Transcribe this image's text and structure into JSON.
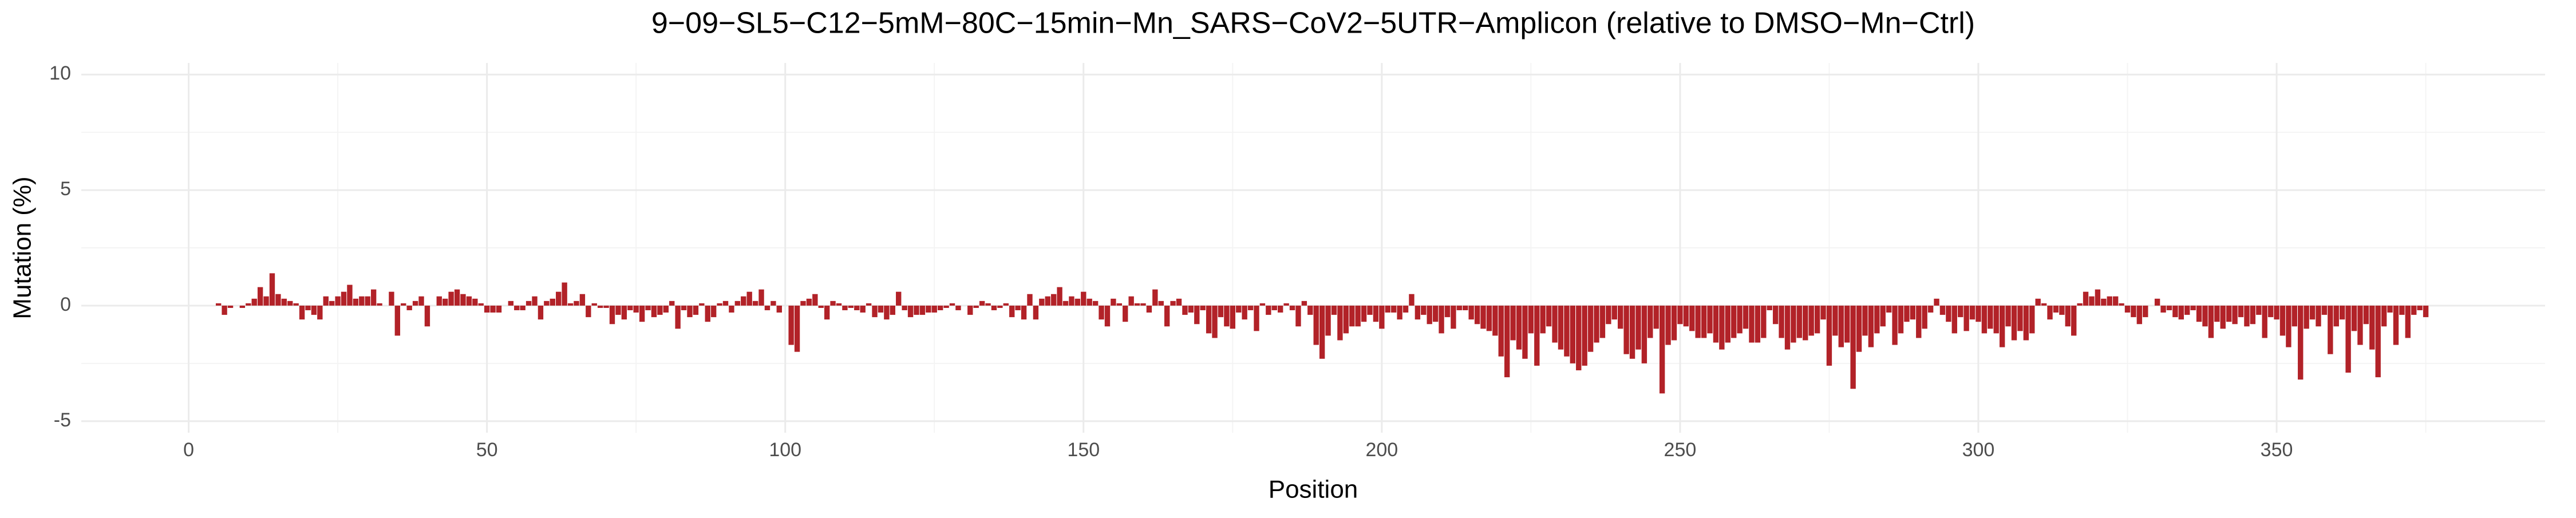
{
  "chart_data": {
    "type": "bar",
    "title": "9−09−SL5−C12−5mM−80C−15min−Mn_SARS−CoV2−5UTR−Amplicon (relative to DMSO−Mn−Ctrl)",
    "x_label": "Position",
    "y_label": "Mutation (%)",
    "color": "#b22228",
    "grid": true,
    "xlim": [
      -18,
      395
    ],
    "xticks": [
      0,
      50,
      100,
      150,
      200,
      250,
      300,
      350
    ],
    "ylim": [
      -5.5,
      10.5
    ],
    "yticks": [
      -5,
      0,
      5,
      10
    ],
    "x": [
      5,
      6,
      7,
      8,
      9,
      10,
      11,
      12,
      13,
      14,
      15,
      16,
      17,
      18,
      19,
      20,
      21,
      22,
      23,
      24,
      25,
      26,
      27,
      28,
      29,
      30,
      31,
      32,
      33,
      34,
      35,
      36,
      37,
      38,
      39,
      40,
      41,
      42,
      43,
      44,
      45,
      46,
      47,
      48,
      49,
      50,
      51,
      52,
      53,
      54,
      55,
      56,
      57,
      58,
      59,
      60,
      61,
      62,
      63,
      64,
      65,
      66,
      67,
      68,
      69,
      70,
      71,
      72,
      73,
      74,
      75,
      76,
      77,
      78,
      79,
      80,
      81,
      82,
      83,
      84,
      85,
      86,
      87,
      88,
      89,
      90,
      91,
      92,
      93,
      94,
      95,
      96,
      97,
      98,
      99,
      100,
      101,
      102,
      103,
      104,
      105,
      106,
      107,
      108,
      109,
      110,
      111,
      112,
      113,
      114,
      115,
      116,
      117,
      118,
      119,
      120,
      121,
      122,
      123,
      124,
      125,
      126,
      127,
      128,
      129,
      130,
      131,
      132,
      133,
      134,
      135,
      136,
      137,
      138,
      139,
      140,
      141,
      142,
      143,
      144,
      145,
      146,
      147,
      148,
      149,
      150,
      151,
      152,
      153,
      154,
      155,
      156,
      157,
      158,
      159,
      160,
      161,
      162,
      163,
      164,
      165,
      166,
      167,
      168,
      169,
      170,
      171,
      172,
      173,
      174,
      175,
      176,
      177,
      178,
      179,
      180,
      181,
      182,
      183,
      184,
      185,
      186,
      187,
      188,
      189,
      190,
      191,
      192,
      193,
      194,
      195,
      196,
      197,
      198,
      199,
      200,
      201,
      202,
      203,
      204,
      205,
      206,
      207,
      208,
      209,
      210,
      211,
      212,
      213,
      214,
      215,
      216,
      217,
      218,
      219,
      220,
      221,
      222,
      223,
      224,
      225,
      226,
      227,
      228,
      229,
      230,
      231,
      232,
      233,
      234,
      235,
      236,
      237,
      238,
      239,
      240,
      241,
      242,
      243,
      244,
      245,
      246,
      247,
      248,
      249,
      250,
      251,
      252,
      253,
      254,
      255,
      256,
      257,
      258,
      259,
      260,
      261,
      262,
      263,
      264,
      265,
      266,
      267,
      268,
      269,
      270,
      271,
      272,
      273,
      274,
      275,
      276,
      277,
      278,
      279,
      280,
      281,
      282,
      283,
      284,
      285,
      286,
      287,
      288,
      289,
      290,
      291,
      292,
      293,
      294,
      295,
      296,
      297,
      298,
      299,
      300,
      301,
      302,
      303,
      304,
      305,
      306,
      307,
      308,
      309,
      310,
      311,
      312,
      313,
      314,
      315,
      316,
      317,
      318,
      319,
      320,
      321,
      322,
      323,
      324,
      325,
      326,
      327,
      328,
      329,
      330,
      331,
      332,
      333,
      334,
      335,
      336,
      337,
      338,
      339,
      340,
      341,
      342,
      343,
      344,
      345,
      346,
      347,
      348,
      349,
      350,
      351,
      352,
      353,
      354,
      355,
      356,
      357,
      358,
      359,
      360,
      361,
      362,
      363,
      364,
      365,
      366,
      367,
      368,
      369,
      370,
      371,
      372,
      373,
      374,
      375
    ],
    "values": [
      0.1,
      -0.4,
      -0.1,
      0,
      -0.1,
      0.1,
      0.3,
      0.8,
      0.4,
      1.4,
      0.5,
      0.3,
      0.2,
      0.1,
      -0.6,
      -0.2,
      -0.4,
      -0.6,
      0.4,
      0.2,
      0.4,
      0.6,
      0.9,
      0.3,
      0.4,
      0.4,
      0.7,
      0.1,
      0,
      0.6,
      -1.3,
      0.1,
      -0.2,
      0.2,
      0.4,
      -0.9,
      0,
      0.4,
      0.3,
      0.6,
      0.7,
      0.5,
      0.4,
      0.3,
      0.1,
      -0.3,
      -0.3,
      -0.3,
      0,
      0.2,
      -0.2,
      -0.2,
      0.2,
      0.4,
      -0.6,
      0.2,
      0.3,
      0.6,
      1.0,
      0.1,
      0.2,
      0.5,
      -0.5,
      0.1,
      -0.1,
      -0.1,
      -0.8,
      -0.4,
      -0.6,
      -0.2,
      -0.3,
      -0.7,
      -0.2,
      -0.5,
      -0.4,
      -0.3,
      0.2,
      -1.0,
      -0.2,
      -0.5,
      -0.4,
      0.1,
      -0.7,
      -0.5,
      0.1,
      0.2,
      -0.3,
      0.2,
      0.4,
      0.6,
      0.2,
      0.7,
      -0.2,
      0.2,
      -0.3,
      0,
      -1.7,
      -2.0,
      0.2,
      0.3,
      0.5,
      -0.1,
      -0.6,
      0.2,
      0.1,
      -0.2,
      -0.1,
      -0.2,
      -0.3,
      0.1,
      -0.5,
      -0.3,
      -0.6,
      -0.4,
      0.6,
      -0.2,
      -0.5,
      -0.4,
      -0.4,
      -0.3,
      -0.3,
      -0.2,
      -0.1,
      0.1,
      -0.2,
      0,
      -0.4,
      -0.1,
      0.2,
      0.1,
      -0.2,
      -0.1,
      0.1,
      -0.5,
      -0.2,
      -0.6,
      0.5,
      -0.6,
      0.3,
      0.4,
      0.5,
      0.8,
      0.2,
      0.4,
      0.3,
      0.6,
      0.3,
      0.2,
      -0.6,
      -0.9,
      0.3,
      0.1,
      -0.7,
      0.4,
      0.1,
      0.1,
      -0.3,
      0.7,
      0.2,
      -0.9,
      0.2,
      0.3,
      -0.4,
      -0.3,
      -0.8,
      -0.2,
      -1.2,
      -1.4,
      -0.5,
      -0.9,
      -1.0,
      -0.3,
      -0.6,
      -0.2,
      -1.1,
      0.1,
      -0.4,
      -0.2,
      -0.3,
      0.1,
      -0.2,
      -0.9,
      0.2,
      -0.4,
      -1.7,
      -2.3,
      -1.3,
      -0.4,
      -1.5,
      -1.2,
      -0.9,
      -0.9,
      -0.7,
      -0.4,
      -0.7,
      -1.0,
      -0.3,
      -0.3,
      -0.6,
      -0.3,
      0.5,
      -0.6,
      -0.4,
      -0.8,
      -0.7,
      -1.2,
      -0.5,
      -1.0,
      -0.2,
      -0.2,
      -0.6,
      -0.8,
      -1.0,
      -1.1,
      -1.3,
      -2.2,
      -3.1,
      -1.5,
      -1.9,
      -2.3,
      -1.2,
      -2.6,
      -1.2,
      -0.9,
      -1.6,
      -1.9,
      -2.2,
      -2.5,
      -2.8,
      -2.6,
      -2.0,
      -1.6,
      -1.4,
      -0.8,
      -0.6,
      -1.0,
      -2.1,
      -2.3,
      -1.9,
      -2.5,
      -1.4,
      -1.0,
      -3.8,
      -1.7,
      -1.5,
      -0.8,
      -0.9,
      -1.1,
      -1.4,
      -1.4,
      -1.2,
      -1.6,
      -1.9,
      -1.6,
      -1.4,
      -1.2,
      -1.0,
      -1.6,
      -1.6,
      -1.4,
      -0.2,
      -0.8,
      -1.4,
      -1.9,
      -1.6,
      -1.4,
      -1.5,
      -1.3,
      -1.2,
      -0.6,
      -2.6,
      -1.3,
      -1.8,
      -1.6,
      -3.6,
      -2.0,
      -1.3,
      -1.8,
      -1.2,
      -0.9,
      -0.3,
      -1.7,
      -1.2,
      -0.7,
      -0.6,
      -1.4,
      -1.0,
      -0.3,
      0.3,
      -0.4,
      -0.7,
      -1.2,
      -0.5,
      -1.1,
      -0.6,
      -0.7,
      -1.2,
      -1.0,
      -1.2,
      -1.8,
      -0.9,
      -1.5,
      -1.1,
      -1.5,
      -1.2,
      0.3,
      0.1,
      -0.6,
      -0.3,
      -0.4,
      -0.9,
      -1.3,
      0.1,
      0.6,
      0.4,
      0.7,
      0.3,
      0.4,
      0.4,
      0.1,
      -0.3,
      -0.5,
      -0.8,
      -0.5,
      0,
      0.3,
      -0.3,
      -0.2,
      -0.5,
      -0.6,
      -0.4,
      -0.2,
      -0.7,
      -0.9,
      -1.4,
      -0.7,
      -1.0,
      -0.7,
      -0.8,
      -0.5,
      -0.9,
      -0.8,
      -0.4,
      -1.4,
      -0.5,
      -0.6,
      -1.3,
      -1.8,
      -0.9,
      -3.2,
      -1.0,
      -0.6,
      -0.9,
      -0.4,
      -2.1,
      -0.9,
      -0.6,
      -2.9,
      -1.1,
      -1.7,
      -0.8,
      -1.9,
      -3.1,
      -0.9,
      -0.3,
      -1.7,
      -0.4,
      -1.4,
      -0.4,
      -0.2,
      -0.5
    ]
  }
}
